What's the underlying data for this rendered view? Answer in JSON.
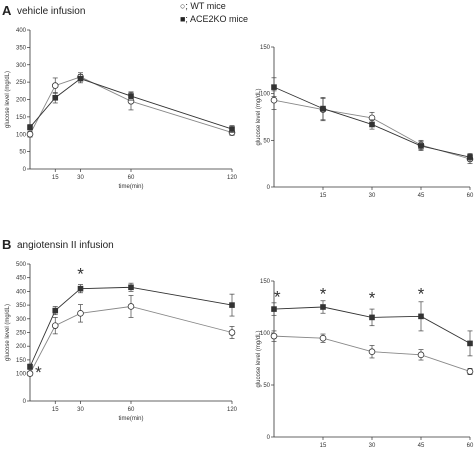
{
  "legend": {
    "items": [
      {
        "marker": "open-circle",
        "label": "○; WT mice"
      },
      {
        "marker": "filled-square",
        "label": "■; ACE2KO mice"
      }
    ]
  },
  "panels": [
    {
      "letter": "A",
      "title": "vehicle  infusion"
    },
    {
      "letter": "B",
      "title": "angiotensin II infusion"
    }
  ],
  "colors": {
    "wt_line": "#888888",
    "ko_line": "#333333",
    "ko_fill": "#333333",
    "wt_fill": "#ffffff"
  },
  "chart_data": [
    {
      "type": "line",
      "panel": "A",
      "xlabel": "time(min)",
      "ylabel": "glucose level (mg/dL)",
      "xlim": [
        0,
        120
      ],
      "ylim": [
        0,
        400
      ],
      "xticks": [
        15,
        30,
        60,
        120
      ],
      "yticks": [
        0,
        50,
        100,
        150,
        200,
        250,
        300,
        350,
        400
      ],
      "series": [
        {
          "name": "WT mice",
          "marker": "circle",
          "x": [
            0,
            15,
            30,
            60,
            120
          ],
          "y": [
            100,
            240,
            265,
            195,
            105
          ],
          "err": [
            8,
            22,
            12,
            25,
            8
          ]
        },
        {
          "name": "ACE2KO mice",
          "marker": "square",
          "x": [
            0,
            15,
            30,
            60,
            120
          ],
          "y": [
            120,
            205,
            260,
            210,
            115
          ],
          "err": [
            8,
            15,
            12,
            12,
            10
          ]
        }
      ],
      "annotations": []
    },
    {
      "type": "line",
      "panel": "A",
      "xlabel": "",
      "ylabel": "glucose level (mg/dL)",
      "xlim": [
        0,
        60
      ],
      "ylim": [
        0,
        150
      ],
      "xticks": [
        15,
        30,
        45,
        60
      ],
      "yticks": [
        0,
        50,
        100,
        150
      ],
      "series": [
        {
          "name": "WT mice",
          "marker": "circle",
          "x": [
            0,
            15,
            30,
            45,
            60
          ],
          "y": [
            93,
            83,
            74,
            45,
            30
          ],
          "err": [
            10,
            12,
            6,
            5,
            5
          ]
        },
        {
          "name": "ACE2KO mice",
          "marker": "square",
          "x": [
            0,
            15,
            30,
            45,
            60
          ],
          "y": [
            107,
            84,
            67,
            44,
            32
          ],
          "err": [
            10,
            12,
            5,
            5,
            4
          ]
        }
      ],
      "annotations": []
    },
    {
      "type": "line",
      "panel": "B",
      "xlabel": "time(min)",
      "ylabel": "glucose level (mg/dL)",
      "xlim": [
        0,
        120
      ],
      "ylim": [
        0,
        500
      ],
      "xticks": [
        15,
        30,
        60,
        120
      ],
      "yticks": [
        0,
        100,
        150,
        200,
        250,
        300,
        350,
        400,
        450,
        500
      ],
      "series": [
        {
          "name": "WT mice",
          "marker": "circle",
          "x": [
            0,
            15,
            30,
            60,
            120
          ],
          "y": [
            100,
            275,
            320,
            345,
            250
          ],
          "err": [
            8,
            30,
            32,
            40,
            22
          ]
        },
        {
          "name": "ACE2KO mice",
          "marker": "square",
          "x": [
            0,
            15,
            30,
            60,
            120
          ],
          "y": [
            125,
            330,
            410,
            415,
            350
          ],
          "err": [
            10,
            15,
            15,
            15,
            40
          ]
        }
      ],
      "annotations": [
        {
          "text": "*",
          "x": 5,
          "y": 105
        },
        {
          "text": "*",
          "x": 30,
          "y": 465
        }
      ]
    },
    {
      "type": "line",
      "panel": "B",
      "xlabel": "",
      "ylabel": "glucose level (mg/dL)",
      "xlim": [
        0,
        60
      ],
      "ylim": [
        0,
        150
      ],
      "xticks": [
        15,
        30,
        45,
        60
      ],
      "yticks": [
        0,
        50,
        100,
        150
      ],
      "series": [
        {
          "name": "WT mice",
          "marker": "circle",
          "x": [
            0,
            15,
            30,
            45,
            60
          ],
          "y": [
            97,
            95,
            82,
            79,
            63
          ],
          "err": [
            5,
            4,
            6,
            5,
            3
          ]
        },
        {
          "name": "ACE2KO mice",
          "marker": "square",
          "x": [
            0,
            15,
            30,
            45,
            60
          ],
          "y": [
            123,
            125,
            115,
            116,
            90
          ],
          "err": [
            6,
            6,
            8,
            14,
            12
          ]
        }
      ],
      "annotations": [
        {
          "text": "*",
          "x": 1,
          "y": 135
        },
        {
          "text": "*",
          "x": 15,
          "y": 138
        },
        {
          "text": "*",
          "x": 30,
          "y": 134
        },
        {
          "text": "*",
          "x": 45,
          "y": 138
        }
      ]
    }
  ]
}
